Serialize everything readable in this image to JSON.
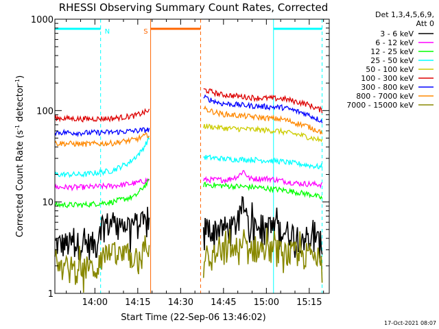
{
  "chart_data": {
    "type": "line",
    "title": "RHESSI Observing Summary Count Rates, Corrected",
    "xlabel": "Start Time (22-Sep-06 13:46:02)",
    "ylabel_main": "Corrected Count Rate (s",
    "ylabel_sup1": "-1",
    "ylabel_mid": " detector",
    "ylabel_sup2": "-1",
    "ylabel_end": ")",
    "yscale": "log",
    "ylim": [
      1,
      1000
    ],
    "xlim_minutes": [
      0,
      96
    ],
    "xticks": [
      {
        "label": "14:00",
        "minutes": 14
      },
      {
        "label": "14:15",
        "minutes": 29
      },
      {
        "label": "14:30",
        "minutes": 44
      },
      {
        "label": "14:45",
        "minutes": 59
      },
      {
        "label": "15:00",
        "minutes": 74
      },
      {
        "label": "15:15",
        "minutes": 89
      }
    ],
    "yticks": [
      {
        "label": "1",
        "value": 1
      },
      {
        "label": "10",
        "value": 10
      },
      {
        "label": "100",
        "value": 100
      },
      {
        "label": "1000",
        "value": 1000
      }
    ],
    "legend_header": [
      "Det 1,3,4,5,6,9,",
      "Att 0"
    ],
    "timestamp": "17-Oct-2021 08:07",
    "gaps": [
      [
        33,
        52
      ]
    ],
    "series": [
      {
        "name": "3 - 6 keV",
        "color": "#000000",
        "segments": [
          {
            "t": [
              0,
              15,
              15.5,
              33
            ],
            "v": [
              3.5,
              3.5,
              5.8,
              5.8
            ]
          },
          {
            "t": [
              52,
              62,
              65,
              66,
              68,
              76,
              90,
              93.5
            ],
            "v": [
              5.2,
              5.2,
              7,
              10,
              6,
              5.2,
              4,
              3.5
            ]
          }
        ]
      },
      {
        "name": "6 - 12 keV",
        "color": "#ff00ff",
        "segments": [
          {
            "t": [
              0,
              10,
              20,
              28,
              33
            ],
            "v": [
              14.5,
              14.5,
              15,
              16,
              17.5
            ]
          },
          {
            "t": [
              52,
              60,
              64,
              66,
              68,
              75,
              85,
              93.5
            ],
            "v": [
              17.5,
              17.5,
              19,
              22,
              18,
              18,
              16,
              15.5
            ]
          }
        ]
      },
      {
        "name": "12 - 25 keV",
        "color": "#00ff00",
        "segments": [
          {
            "t": [
              0,
              10,
              20,
              28,
              33
            ],
            "v": [
              9.3,
              9.3,
              10,
              11.5,
              17
            ]
          },
          {
            "t": [
              52,
              60,
              70,
              80,
              90,
              93.5
            ],
            "v": [
              15.5,
              15,
              14.5,
              13.5,
              12,
              11
            ]
          }
        ]
      },
      {
        "name": "25 - 50 keV",
        "color": "#00ffff",
        "segments": [
          {
            "t": [
              0,
              10,
              20,
              26,
              30,
              33
            ],
            "v": [
              20,
              20,
              22,
              27,
              35,
              50
            ]
          },
          {
            "t": [
              52,
              60,
              70,
              78,
              86,
              93.5
            ],
            "v": [
              31,
              29.5,
              29,
              28,
              26,
              24
            ]
          }
        ]
      },
      {
        "name": "50 - 100 keV",
        "color": "#cccc00",
        "segments": [
          {
            "t": [
              52,
              60,
              70,
              78,
              86,
              93.5
            ],
            "v": [
              68,
              64,
              62,
              60,
              54,
              47
            ]
          }
        ]
      },
      {
        "name": "100 - 300 keV",
        "color": "#dd0000",
        "segments": [
          {
            "t": [
              0,
              10,
              20,
              28,
              33
            ],
            "v": [
              83,
              81,
              82,
              88,
              100
            ]
          },
          {
            "t": [
              52,
              58,
              70,
              80,
              88,
              93.5
            ],
            "v": [
              170,
              150,
              138,
              135,
              118,
              100
            ]
          }
        ]
      },
      {
        "name": "300 - 800 keV",
        "color": "#0000ff",
        "segments": [
          {
            "t": [
              0,
              10,
              20,
              28,
              33
            ],
            "v": [
              58,
              57,
              58,
              60,
              62
            ]
          },
          {
            "t": [
              52,
              58,
              70,
              80,
              88,
              93.5
            ],
            "v": [
              140,
              120,
              112,
              108,
              92,
              77
            ]
          }
        ]
      },
      {
        "name": "800 - 7000 keV",
        "color": "#ff8800",
        "segments": [
          {
            "t": [
              0,
              10,
              20,
              28,
              33
            ],
            "v": [
              44,
              43,
              44,
              48,
              55
            ]
          },
          {
            "t": [
              52,
              58,
              70,
              80,
              88,
              93.5
            ],
            "v": [
              105,
              92,
              85,
              80,
              68,
              58
            ]
          }
        ]
      },
      {
        "name": "7000 - 15000 keV",
        "color": "#888800",
        "segments": [
          {
            "t": [
              0,
              15,
              15.5,
              33
            ],
            "v": [
              1.9,
              1.9,
              2.6,
              2.6
            ]
          },
          {
            "t": [
              52,
              60,
              70,
              80,
              93.5
            ],
            "v": [
              2.2,
              3,
              3.2,
              2.8,
              2.6
            ]
          }
        ]
      }
    ],
    "markers": [
      {
        "label": "N",
        "color": "#00ffff",
        "start": 0,
        "end": 16
      },
      {
        "label": "S",
        "color": "#ff6600",
        "start": 33.5,
        "end": 51
      },
      {
        "label": "",
        "color": "#00ffff",
        "start": 76.5,
        "end": 93.5
      }
    ]
  }
}
